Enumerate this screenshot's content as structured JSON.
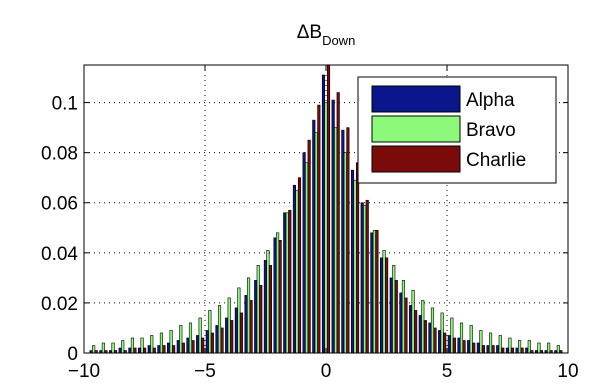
{
  "chart_data": {
    "type": "bar",
    "title": "ΔB",
    "title_subscript": "Down",
    "xlabel": "",
    "ylabel": "",
    "xlim": [
      -10,
      10
    ],
    "ylim": [
      0,
      0.115
    ],
    "xticks": [
      -10,
      -5,
      0,
      5,
      10
    ],
    "xtick_labels": [
      "−10",
      "−5",
      "0",
      "5",
      "10"
    ],
    "yticks": [
      0,
      0.02,
      0.04,
      0.06,
      0.08,
      0.1
    ],
    "ytick_labels": [
      "0",
      "0.02",
      "0.04",
      "0.06",
      "0.08",
      "0.1"
    ],
    "grid": true,
    "legend_position": "top-right",
    "x": [
      -9.6,
      -9.2,
      -8.8,
      -8.4,
      -8.0,
      -7.6,
      -7.2,
      -6.8,
      -6.4,
      -6.0,
      -5.6,
      -5.2,
      -4.8,
      -4.4,
      -4.0,
      -3.6,
      -3.2,
      -2.8,
      -2.4,
      -2.0,
      -1.6,
      -1.2,
      -0.8,
      -0.4,
      0.0,
      0.4,
      0.8,
      1.2,
      1.6,
      2.0,
      2.4,
      2.8,
      3.2,
      3.6,
      4.0,
      4.4,
      4.8,
      5.2,
      5.6,
      6.0,
      6.4,
      6.8,
      7.2,
      7.6,
      8.0,
      8.4,
      8.8,
      9.2,
      9.6
    ],
    "series": [
      {
        "name": "Alpha",
        "color": "#0b168c",
        "values": [
          0.001,
          0.001,
          0.001,
          0.002,
          0.002,
          0.002,
          0.003,
          0.003,
          0.004,
          0.005,
          0.006,
          0.007,
          0.009,
          0.011,
          0.014,
          0.018,
          0.023,
          0.029,
          0.037,
          0.046,
          0.056,
          0.067,
          0.08,
          0.093,
          0.111,
          0.101,
          0.089,
          0.073,
          0.06,
          0.048,
          0.038,
          0.03,
          0.024,
          0.019,
          0.015,
          0.012,
          0.009,
          0.007,
          0.006,
          0.005,
          0.004,
          0.003,
          0.003,
          0.002,
          0.002,
          0.002,
          0.001,
          0.001,
          0.001
        ]
      },
      {
        "name": "Bravo",
        "color": "#8cf97a",
        "values": [
          0.003,
          0.004,
          0.004,
          0.005,
          0.006,
          0.006,
          0.007,
          0.008,
          0.009,
          0.011,
          0.012,
          0.014,
          0.017,
          0.019,
          0.022,
          0.026,
          0.03,
          0.035,
          0.041,
          0.048,
          0.056,
          0.065,
          0.076,
          0.088,
          0.1,
          0.09,
          0.08,
          0.069,
          0.059,
          0.049,
          0.041,
          0.035,
          0.029,
          0.025,
          0.021,
          0.018,
          0.016,
          0.014,
          0.012,
          0.011,
          0.009,
          0.008,
          0.007,
          0.006,
          0.005,
          0.005,
          0.004,
          0.004,
          0.003
        ]
      },
      {
        "name": "Charlie",
        "color": "#7b0a0a",
        "values": [
          0.001,
          0.001,
          0.001,
          0.001,
          0.002,
          0.002,
          0.002,
          0.003,
          0.003,
          0.004,
          0.005,
          0.006,
          0.008,
          0.01,
          0.013,
          0.016,
          0.021,
          0.027,
          0.035,
          0.045,
          0.057,
          0.07,
          0.085,
          0.099,
          0.115,
          0.104,
          0.09,
          0.076,
          0.061,
          0.049,
          0.038,
          0.029,
          0.022,
          0.017,
          0.013,
          0.01,
          0.008,
          0.006,
          0.005,
          0.004,
          0.003,
          0.003,
          0.002,
          0.002,
          0.002,
          0.001,
          0.001,
          0.001,
          0.001
        ]
      }
    ]
  }
}
